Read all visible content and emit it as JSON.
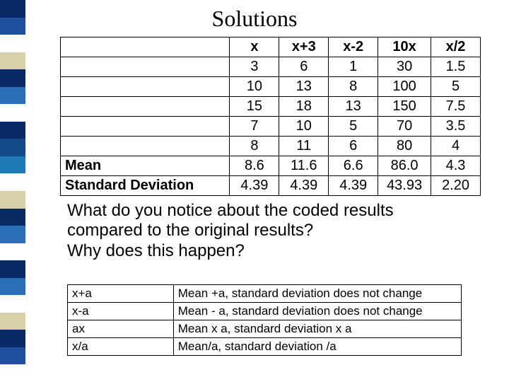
{
  "sidebar": {
    "colors": [
      "#0a2a66",
      "#1f4e9c",
      "#ffffff",
      "#d8d0a8",
      "#0a2a66",
      "#2a6fb8",
      "#ffffff",
      "#0a2a66",
      "#124a8a",
      "#1f7ab8",
      "#ffffff",
      "#d8d0a8",
      "#0a2a66",
      "#2a6fb8",
      "#ffffff",
      "#0a2a66",
      "#2a6fb8",
      "#ffffff",
      "#d8d0a8",
      "#0a2a66",
      "#1f4e9c",
      "#ffffff"
    ]
  },
  "title": "Solutions",
  "table1": {
    "col_widths": [
      "240px",
      "70px",
      "70px",
      "70px",
      "75px",
      "70px"
    ],
    "headers": [
      "",
      "x",
      "x+3",
      "x-2",
      "10x",
      "x/2"
    ],
    "rows": [
      {
        "label": "",
        "cells": [
          "3",
          "6",
          "1",
          "30",
          "1.5"
        ]
      },
      {
        "label": "",
        "cells": [
          "10",
          "13",
          "8",
          "100",
          "5"
        ]
      },
      {
        "label": "",
        "cells": [
          "15",
          "18",
          "13",
          "150",
          "7.5"
        ]
      },
      {
        "label": "",
        "cells": [
          "7",
          "10",
          "5",
          "70",
          "3.5"
        ]
      },
      {
        "label": "",
        "cells": [
          "8",
          "11",
          "6",
          "80",
          "4"
        ]
      },
      {
        "label": "Mean",
        "cells": [
          "8.6",
          "11.6",
          "6.6",
          "86.0",
          "4.3"
        ]
      },
      {
        "label": "Standard Deviation",
        "cells": [
          "4.39",
          "4.39",
          "4.39",
          "43.93",
          "2.20"
        ]
      }
    ]
  },
  "questions": {
    "line1": "What do you notice about the coded results",
    "line2": "compared to the original results?",
    "line3": "Why does this happen?"
  },
  "table2": {
    "col_widths": [
      "150px",
      "408px"
    ],
    "rows": [
      {
        "c0": "x+a",
        "c1": "Mean +a, standard deviation does not change"
      },
      {
        "c0": "x-a",
        "c1": "Mean - a, standard deviation does not change"
      },
      {
        "c0": "ax",
        "c1": "Mean x a, standard deviation x a"
      },
      {
        "c0": "x/a",
        "c1": "Mean/a, standard deviation /a"
      }
    ]
  }
}
